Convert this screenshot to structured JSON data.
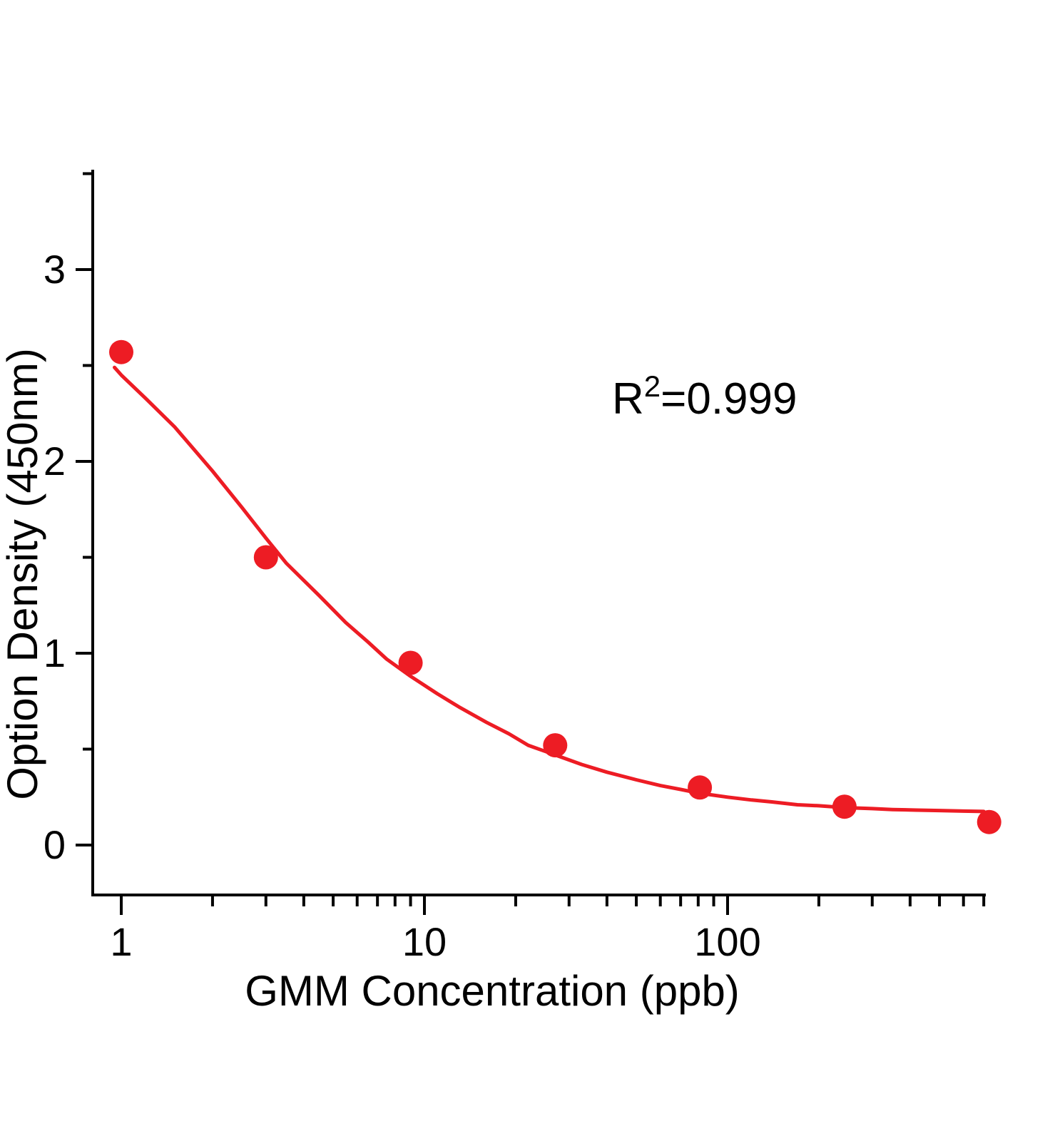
{
  "figure": {
    "background": "#ffffff",
    "axis_color": "#000000",
    "accent_color": "#ed1c24"
  },
  "chart_data": {
    "type": "scatter",
    "title": "",
    "xlabel": "GMM Concentration (ppb)",
    "ylabel": "Option Density (450nm)",
    "x_scale": "log10",
    "x_range": [
      0.8,
      710
    ],
    "y_range": [
      -0.26,
      3.51
    ],
    "grid": false,
    "legend_position": "none",
    "x_axis": {
      "major_ticks": [
        1,
        10,
        100
      ],
      "major_tick_labels": [
        "1",
        "10",
        "100"
      ],
      "minor_ticks": [
        2,
        3,
        4,
        5,
        6,
        7,
        8,
        9,
        20,
        30,
        40,
        50,
        60,
        70,
        80,
        90,
        200,
        300,
        400,
        500,
        600,
        700
      ]
    },
    "y_axis": {
      "major_ticks": [
        0,
        1,
        2,
        3
      ],
      "major_tick_labels": [
        "0",
        "1",
        "2",
        "3"
      ],
      "minor_ticks": [
        0.5,
        1.5,
        2.5,
        3.5
      ]
    },
    "annotation": {
      "full_text": "R²=0.999",
      "base": "R",
      "superscript": "2",
      "rest": "=0.999"
    },
    "series": [
      {
        "name": "fit-curve",
        "kind": "line",
        "color": "#ed1c24",
        "stroke_width": 5,
        "points": [
          [
            0.95,
            2.49
          ],
          [
            1,
            2.45
          ],
          [
            1.2,
            2.33
          ],
          [
            1.5,
            2.18
          ],
          [
            1.7,
            2.08
          ],
          [
            2,
            1.95
          ],
          [
            2.5,
            1.76
          ],
          [
            3,
            1.6
          ],
          [
            3.5,
            1.47
          ],
          [
            4.5,
            1.3
          ],
          [
            5.5,
            1.16
          ],
          [
            6.5,
            1.06
          ],
          [
            7.5,
            0.97
          ],
          [
            9,
            0.88
          ],
          [
            11,
            0.79
          ],
          [
            13,
            0.72
          ],
          [
            16,
            0.64
          ],
          [
            19,
            0.58
          ],
          [
            22,
            0.52
          ],
          [
            27,
            0.47
          ],
          [
            33,
            0.42
          ],
          [
            40,
            0.38
          ],
          [
            50,
            0.34
          ],
          [
            60,
            0.31
          ],
          [
            70,
            0.29
          ],
          [
            81,
            0.27
          ],
          [
            100,
            0.25
          ],
          [
            120,
            0.235
          ],
          [
            140,
            0.225
          ],
          [
            170,
            0.21
          ],
          [
            200,
            0.205
          ],
          [
            243,
            0.195
          ],
          [
            300,
            0.19
          ],
          [
            350,
            0.185
          ],
          [
            420,
            0.182
          ],
          [
            500,
            0.18
          ],
          [
            600,
            0.177
          ],
          [
            700,
            0.175
          ]
        ]
      },
      {
        "name": "standard-points",
        "kind": "scatter",
        "color": "#ed1c24",
        "marker": "circle",
        "marker_radius": 17,
        "points": [
          [
            1,
            2.57
          ],
          [
            3,
            1.5
          ],
          [
            9,
            0.95
          ],
          [
            27,
            0.52
          ],
          [
            81,
            0.3
          ],
          [
            243,
            0.2
          ],
          [
            729,
            0.12
          ]
        ]
      }
    ]
  }
}
